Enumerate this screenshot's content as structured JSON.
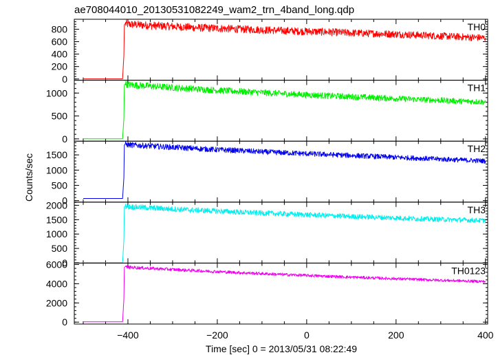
{
  "chart_data": {
    "type": "line",
    "title": "ae708044010_20130531082249_wam2_trn_4band_long.qdp",
    "xlabel": "Time [sec] 0 = 2013/05/31 08:22:49",
    "ylabel": "Counts/sec",
    "xlim": [
      -520,
      405
    ],
    "xticks": [
      -400,
      -200,
      0,
      200,
      400
    ],
    "xtick_labels": [
      "−400",
      "−200",
      "0",
      "200",
      "400"
    ],
    "grid": false,
    "panels": [
      {
        "name": "TH0",
        "label": "TH0",
        "color": "#ff0000",
        "ylim": [
          -20,
          960
        ],
        "yticks": [
          0,
          200,
          400,
          600,
          800
        ],
        "ytick_labels": [
          "0",
          "200",
          "400",
          "600",
          "800"
        ],
        "x": [
          -500,
          -412,
          -409,
          -408,
          -406,
          -400,
          -350,
          -300,
          -250,
          -200,
          -150,
          -100,
          -50,
          0,
          50,
          100,
          150,
          200,
          250,
          300,
          350,
          400
        ],
        "y": [
          2,
          2,
          380,
          870,
          890,
          880,
          860,
          845,
          825,
          815,
          800,
          790,
          775,
          765,
          755,
          740,
          730,
          720,
          705,
          690,
          675,
          660
        ]
      },
      {
        "name": "TH1",
        "label": "TH1",
        "color": "#00ee00",
        "ylim": [
          -50,
          1280
        ],
        "yticks": [
          0,
          500,
          1000
        ],
        "ytick_labels": [
          "0",
          "500",
          "1000"
        ],
        "x": [
          -500,
          -412,
          -409,
          -408,
          -406,
          -400,
          -350,
          -300,
          -250,
          -200,
          -150,
          -100,
          -50,
          0,
          50,
          100,
          150,
          200,
          250,
          300,
          350,
          400
        ],
        "y": [
          3,
          3,
          450,
          1180,
          1200,
          1185,
          1150,
          1120,
          1090,
          1060,
          1035,
          1010,
          985,
          960,
          940,
          920,
          900,
          880,
          860,
          840,
          820,
          805
        ]
      },
      {
        "name": "TH2",
        "label": "TH2",
        "color": "#0000ee",
        "ylim": [
          -50,
          1950
        ],
        "yticks": [
          0,
          500,
          1000,
          1500
        ],
        "ytick_labels": [
          "0",
          "500",
          "1000",
          "1500"
        ],
        "x": [
          -500,
          -412,
          -409,
          -408,
          -406,
          -400,
          -350,
          -300,
          -250,
          -200,
          -150,
          -100,
          -50,
          0,
          50,
          100,
          150,
          200,
          250,
          300,
          350,
          400
        ],
        "y": [
          70,
          70,
          750,
          1820,
          1850,
          1830,
          1790,
          1750,
          1710,
          1670,
          1640,
          1600,
          1570,
          1540,
          1510,
          1480,
          1450,
          1420,
          1390,
          1360,
          1330,
          1300
        ]
      },
      {
        "name": "TH3",
        "label": "TH3",
        "color": "#00eeee",
        "ylim": [
          -10,
          2110
        ],
        "yticks": [
          0,
          500,
          1000,
          1500,
          2000
        ],
        "ytick_labels": [
          "0",
          "500",
          "1000",
          "1500",
          "2000"
        ],
        "x": [
          -500,
          -412,
          -409,
          -408,
          -406,
          -400,
          -350,
          -300,
          -250,
          -200,
          -150,
          -100,
          -50,
          0,
          50,
          100,
          150,
          200,
          250,
          300,
          350,
          400
        ],
        "y": [
          5,
          5,
          800,
          1950,
          1970,
          1950,
          1910,
          1870,
          1830,
          1800,
          1760,
          1730,
          1700,
          1670,
          1640,
          1610,
          1590,
          1560,
          1530,
          1510,
          1490,
          1470
        ]
      },
      {
        "name": "TH0123",
        "label": "TH0123",
        "color": "#ee00ee",
        "ylim": [
          -200,
          6150
        ],
        "yticks": [
          0,
          2000,
          4000,
          6000
        ],
        "ytick_labels": [
          "0",
          "2000",
          "4000",
          "6000"
        ],
        "x": [
          -500,
          -412,
          -409,
          -408,
          -406,
          -400,
          -350,
          -300,
          -250,
          -200,
          -150,
          -100,
          -50,
          0,
          50,
          100,
          150,
          200,
          250,
          300,
          350,
          400
        ],
        "y": [
          40,
          40,
          2400,
          5700,
          5780,
          5720,
          5600,
          5480,
          5370,
          5260,
          5150,
          5050,
          4950,
          4860,
          4770,
          4680,
          4600,
          4520,
          4440,
          4360,
          4290,
          4230
        ]
      }
    ]
  }
}
